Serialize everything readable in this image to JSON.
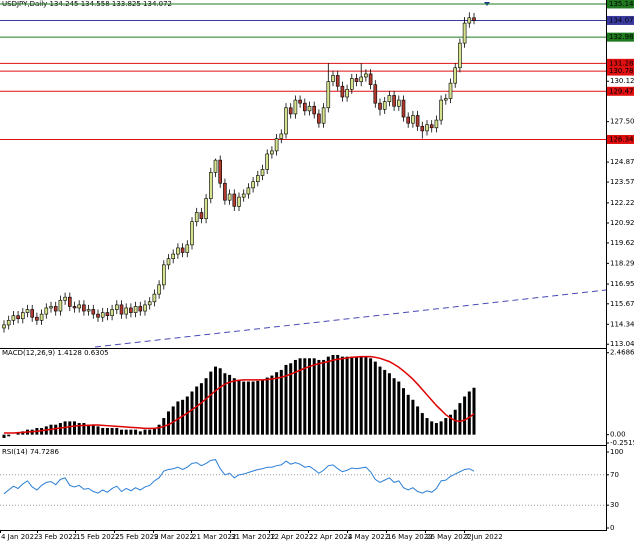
{
  "chart_data": [
    {
      "type": "candlestick",
      "title": "USDJPY,Daily  134.245 134.558 133.825 134.072",
      "open": [
        114.1,
        114.3,
        114.6,
        114.9,
        114.7,
        115.1,
        115.3,
        114.8,
        114.6,
        115.0,
        115.4,
        115.5,
        115.2,
        115.9,
        116.1,
        115.5,
        115.4,
        115.6,
        115.2,
        115.3,
        115.0,
        114.8,
        115.1,
        114.9,
        115.3,
        115.6,
        115.0,
        115.4,
        115.1,
        115.5,
        115.2,
        115.6,
        115.8,
        116.3,
        116.9,
        118.2,
        118.6,
        118.9,
        119.3,
        119.0,
        119.5,
        121.0,
        121.6,
        121.2,
        122.5,
        124.2,
        125.0,
        123.5,
        122.4,
        122.8,
        122.0,
        122.6,
        122.8,
        123.2,
        123.6,
        124.0,
        124.4,
        125.4,
        125.6,
        126.4,
        126.7,
        128.4,
        128.0,
        128.9,
        128.7,
        128.2,
        128.5,
        128.0,
        127.4,
        128.4,
        130.1,
        130.5,
        129.8,
        129.1,
        129.6,
        130.3,
        130.1,
        130.4,
        130.6,
        129.9,
        128.7,
        128.3,
        128.8,
        129.2,
        128.5,
        128.9,
        127.8,
        127.4,
        127.9,
        127.2,
        126.9,
        127.3,
        127.1,
        127.6,
        128.9,
        129.0,
        130.0,
        131.0,
        132.6,
        133.9,
        134.245
      ],
      "high": [
        114.6,
        114.9,
        115.2,
        115.2,
        115.4,
        115.6,
        115.6,
        115.1,
        115.3,
        115.7,
        115.8,
        115.8,
        116.2,
        116.4,
        116.4,
        115.8,
        115.9,
        115.9,
        115.6,
        115.6,
        115.3,
        115.4,
        115.4,
        115.6,
        115.9,
        115.9,
        115.7,
        115.7,
        115.8,
        115.8,
        115.9,
        116.1,
        116.6,
        117.2,
        118.5,
        118.9,
        119.2,
        119.6,
        119.6,
        119.8,
        121.3,
        121.9,
        121.9,
        122.8,
        124.5,
        125.1,
        125.3,
        123.8,
        123.1,
        123.1,
        122.9,
        123.1,
        123.5,
        123.9,
        124.3,
        124.7,
        125.7,
        125.9,
        126.7,
        127.0,
        128.7,
        128.7,
        129.2,
        129.2,
        129.0,
        128.8,
        128.8,
        128.3,
        128.7,
        131.3,
        130.8,
        130.8,
        130.1,
        129.9,
        130.6,
        130.6,
        131.3,
        130.9,
        130.9,
        130.2,
        129.0,
        129.1,
        129.5,
        129.5,
        129.2,
        129.2,
        128.1,
        128.2,
        128.2,
        127.5,
        127.6,
        127.6,
        127.9,
        129.2,
        129.3,
        130.3,
        131.3,
        132.9,
        134.3,
        134.6,
        134.558
      ],
      "low": [
        113.8,
        114.0,
        114.3,
        114.4,
        114.4,
        114.8,
        114.5,
        114.3,
        114.3,
        114.7,
        115.1,
        114.9,
        114.9,
        115.6,
        115.2,
        115.1,
        115.1,
        114.9,
        114.9,
        114.7,
        114.5,
        114.5,
        114.6,
        114.6,
        115.0,
        114.7,
        114.7,
        114.8,
        114.8,
        114.9,
        114.9,
        115.3,
        115.5,
        116.0,
        116.6,
        117.9,
        118.3,
        118.6,
        118.7,
        118.7,
        119.2,
        120.7,
        120.9,
        120.9,
        122.2,
        123.9,
        123.2,
        122.1,
        122.1,
        121.7,
        121.7,
        122.3,
        122.5,
        122.9,
        123.3,
        123.7,
        124.1,
        125.1,
        125.3,
        126.1,
        126.4,
        127.7,
        127.7,
        128.4,
        127.9,
        127.9,
        127.7,
        127.1,
        127.1,
        128.1,
        129.8,
        129.5,
        128.8,
        128.8,
        129.3,
        129.8,
        129.8,
        130.1,
        129.6,
        128.4,
        127.9,
        128.0,
        128.5,
        128.2,
        128.2,
        127.5,
        127.1,
        127.1,
        126.9,
        126.4,
        126.6,
        126.8,
        126.8,
        127.3,
        128.6,
        128.7,
        129.7,
        130.7,
        132.3,
        133.6,
        133.825
      ],
      "close": [
        114.3,
        114.6,
        114.9,
        114.7,
        115.1,
        115.3,
        114.8,
        114.6,
        115.0,
        115.4,
        115.5,
        115.2,
        115.9,
        116.1,
        115.5,
        115.4,
        115.6,
        115.2,
        115.3,
        115.0,
        114.8,
        115.1,
        114.9,
        115.3,
        115.6,
        115.0,
        115.4,
        115.1,
        115.5,
        115.2,
        115.6,
        115.8,
        116.3,
        116.9,
        118.2,
        118.6,
        118.9,
        119.3,
        119.0,
        119.5,
        121.0,
        121.6,
        121.2,
        122.5,
        124.2,
        125.0,
        123.5,
        122.4,
        122.8,
        122.0,
        122.6,
        122.8,
        123.2,
        123.6,
        124.0,
        124.4,
        125.4,
        125.6,
        126.4,
        126.7,
        128.4,
        128.0,
        128.9,
        128.7,
        128.2,
        128.5,
        128.0,
        127.4,
        128.4,
        130.1,
        130.5,
        129.8,
        129.1,
        129.6,
        130.3,
        130.1,
        130.4,
        130.6,
        129.9,
        128.7,
        128.3,
        128.8,
        129.2,
        128.5,
        128.9,
        127.8,
        127.4,
        127.9,
        127.2,
        126.9,
        127.3,
        127.1,
        127.6,
        128.9,
        129.0,
        130.0,
        131.0,
        132.6,
        133.9,
        134.245,
        134.072
      ],
      "up_color": "#d6e28c",
      "down_color": "#b03a2e",
      "ylim": [
        112.8,
        135.4
      ],
      "yticks": [
        130.125,
        {
          "value": 127.5,
          "label": "127.500"
        },
        124.875,
        123.575,
        122.225,
        {
          "value": 120.92,
          "label": "120.920"
        },
        119.625,
        118.295,
        116.955,
        {
          "value": 115.67,
          "label": "115.670"
        },
        {
          "value": 114.34,
          "label": "114.340"
        },
        113.045
      ],
      "levels": [
        {
          "value": 135.143,
          "color": "#1f7a1f"
        },
        {
          "value": 134.072,
          "color": "#3a3aa0"
        },
        {
          "value": 132.987,
          "color": "#1f7a1f"
        },
        {
          "value": 131.287,
          "color": "#e01010"
        },
        {
          "value": 130.785,
          "color": "#e01010"
        },
        {
          "value": 129.471,
          "color": "#e01010"
        },
        {
          "value": 126.342,
          "color": "#e01010"
        }
      ]
    },
    {
      "type": "macd",
      "title": "MACD(12,26,9) 1.4128 0.6305",
      "series": [
        {
          "color": "#000000",
          "values": [
            -0.1,
            -0.05,
            0.0,
            0.05,
            0.1,
            0.15,
            0.15,
            0.2,
            0.2,
            0.25,
            0.3,
            0.3,
            0.35,
            0.4,
            0.4,
            0.4,
            0.35,
            0.35,
            0.3,
            0.3,
            0.25,
            0.2,
            0.2,
            0.2,
            0.2,
            0.15,
            0.15,
            0.15,
            0.15,
            0.1,
            0.15,
            0.15,
            0.2,
            0.3,
            0.5,
            0.7,
            0.85,
            1.0,
            1.05,
            1.15,
            1.3,
            1.45,
            1.55,
            1.7,
            1.9,
            2.05,
            2.0,
            1.85,
            1.8,
            1.7,
            1.65,
            1.6,
            1.6,
            1.6,
            1.62,
            1.65,
            1.72,
            1.78,
            1.88,
            1.95,
            2.1,
            2.15,
            2.25,
            2.3,
            2.3,
            2.3,
            2.3,
            2.25,
            2.25,
            2.35,
            2.4,
            2.4,
            2.35,
            2.35,
            2.35,
            2.35,
            2.35,
            2.35,
            2.3,
            2.2,
            2.05,
            1.95,
            1.85,
            1.7,
            1.6,
            1.4,
            1.2,
            1.05,
            0.85,
            0.65,
            0.5,
            0.4,
            0.35,
            0.4,
            0.5,
            0.6,
            0.75,
            0.95,
            1.15,
            1.3,
            1.4128
          ]
        },
        {
          "color": "#e00000",
          "values": [
            0.05,
            0.05,
            0.05,
            0.06,
            0.07,
            0.08,
            0.09,
            0.1,
            0.12,
            0.14,
            0.16,
            0.18,
            0.2,
            0.22,
            0.24,
            0.26,
            0.27,
            0.28,
            0.28,
            0.29,
            0.29,
            0.28,
            0.27,
            0.26,
            0.25,
            0.24,
            0.23,
            0.22,
            0.21,
            0.2,
            0.19,
            0.19,
            0.19,
            0.21,
            0.25,
            0.3,
            0.38,
            0.47,
            0.56,
            0.65,
            0.75,
            0.85,
            0.96,
            1.08,
            1.2,
            1.32,
            1.43,
            1.52,
            1.58,
            1.62,
            1.64,
            1.65,
            1.65,
            1.65,
            1.65,
            1.65,
            1.66,
            1.68,
            1.7,
            1.73,
            1.77,
            1.82,
            1.88,
            1.94,
            2.0,
            2.05,
            2.1,
            2.14,
            2.17,
            2.2,
            2.24,
            2.27,
            2.29,
            2.31,
            2.33,
            2.34,
            2.35,
            2.35,
            2.35,
            2.33,
            2.3,
            2.25,
            2.2,
            2.12,
            2.03,
            1.92,
            1.8,
            1.67,
            1.52,
            1.36,
            1.2,
            1.04,
            0.88,
            0.74,
            0.6,
            0.5,
            0.42,
            0.4,
            0.44,
            0.52,
            0.6305
          ]
        }
      ],
      "ylim": [
        -0.2515,
        2.55
      ],
      "yticks": [
        2.4686,
        {
          "value": 0,
          "label": "0.00"
        },
        -0.2515
      ]
    },
    {
      "type": "line",
      "title": "RSI(14) 74.7286",
      "color": "#2b7fd6",
      "values": [
        45,
        50,
        55,
        52,
        58,
        62,
        54,
        50,
        56,
        60,
        61,
        57,
        64,
        66,
        56,
        54,
        56,
        51,
        52,
        48,
        46,
        50,
        47,
        52,
        55,
        48,
        52,
        49,
        53,
        50,
        54,
        56,
        62,
        66,
        75,
        77,
        78,
        80,
        77,
        80,
        85,
        86,
        82,
        85,
        89,
        90,
        78,
        70,
        72,
        66,
        70,
        71,
        73,
        75,
        77,
        78,
        80,
        80,
        82,
        83,
        88,
        84,
        86,
        84,
        80,
        81,
        77,
        72,
        76,
        82,
        83,
        78,
        74,
        76,
        79,
        78,
        79,
        80,
        74,
        64,
        60,
        63,
        66,
        60,
        62,
        53,
        50,
        53,
        48,
        46,
        49,
        47,
        52,
        62,
        63,
        68,
        71,
        74,
        77,
        78,
        74.7286
      ],
      "ylim": [
        0,
        100
      ],
      "yticks": [
        100,
        70,
        30,
        0
      ],
      "levels": [
        70,
        30
      ],
      "xtick_labels": [
        "4 Jan 2022",
        "3 Feb 2022",
        "15 Feb 2022",
        "25 Feb 2022",
        "9 Mar 2022",
        "21 Mar 2022",
        "31 Mar 2022",
        "12 Apr 2022",
        "22 Apr 2022",
        "4 May 2022",
        "16 May 2022",
        "26 May 2022",
        "7 Jun 2022"
      ]
    }
  ]
}
